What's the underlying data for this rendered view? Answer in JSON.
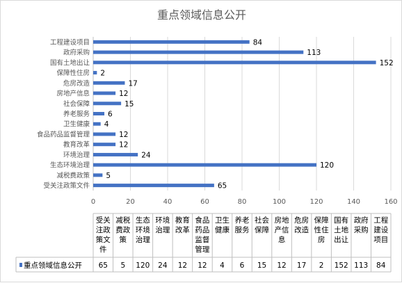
{
  "chart_data": {
    "type": "bar",
    "orientation": "horizontal",
    "title": "重点领域信息公开",
    "categories": [
      "受关注政策文件",
      "减税费政策",
      "生态环境治理",
      "环境治理",
      "教育改革",
      "食品药品监督管理",
      "卫生健康",
      "养老服务",
      "社会保障",
      "房地产信息",
      "危房改造",
      "保障性住房",
      "国有土地出让",
      "政府采购",
      "工程建设项目"
    ],
    "table_headers": [
      [
        "受关",
        "注政",
        "策文",
        "件"
      ],
      [
        "减税",
        "费政",
        "策"
      ],
      [
        "生态",
        "环境",
        "治理"
      ],
      [
        "环境",
        "治理"
      ],
      [
        "教育",
        "改革"
      ],
      [
        "食品",
        "药品",
        "监督",
        "管理"
      ],
      [
        "卫生",
        "健康"
      ],
      [
        "养老",
        "服务"
      ],
      [
        "社会",
        "保障"
      ],
      [
        "房地",
        "产信",
        "息"
      ],
      [
        "危房",
        "改造"
      ],
      [
        "保障",
        "性住",
        "房"
      ],
      [
        "国有",
        "土地",
        "出让"
      ],
      [
        "政府",
        "采购"
      ],
      [
        "工程",
        "建设",
        "项目"
      ]
    ],
    "series": [
      {
        "name": "重点领域信息公开",
        "values": [
          65,
          5,
          120,
          24,
          12,
          12,
          4,
          6,
          15,
          12,
          17,
          2,
          152,
          113,
          84
        ]
      }
    ],
    "xlim": [
      0,
      160
    ],
    "xticks": [
      0,
      20,
      40,
      60,
      80,
      100,
      120,
      140,
      160
    ],
    "grid": true,
    "data_labels": true,
    "data_table": true,
    "colors": {
      "bar": "#4472c4",
      "grid": "#d9d9d9",
      "text": "#595959"
    }
  }
}
